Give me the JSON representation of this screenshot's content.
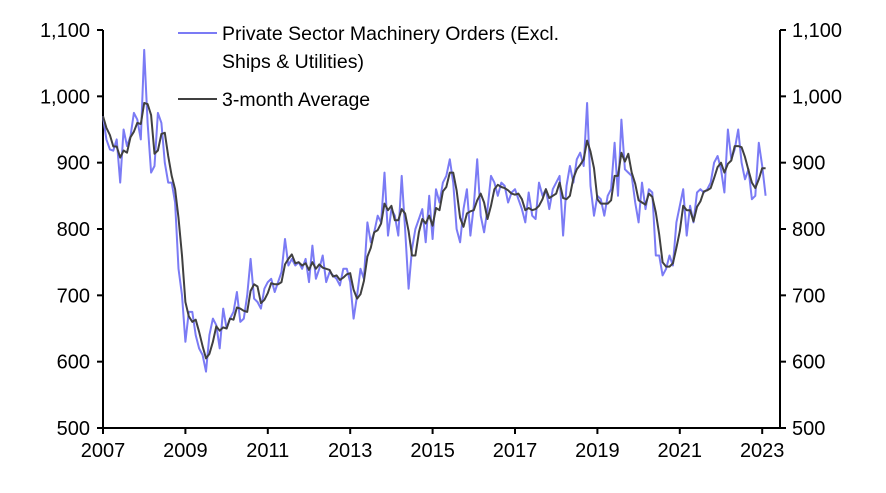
{
  "chart_data": {
    "type": "line",
    "title": "",
    "xlabel": "",
    "ylabel": "",
    "ylim": [
      500,
      1100
    ],
    "xlim": [
      2007,
      2023.4
    ],
    "x_ticks": [
      "2007",
      "2009",
      "2011",
      "2013",
      "2015",
      "2017",
      "2019",
      "2021",
      "2023"
    ],
    "y_ticks": [
      "500",
      "600",
      "700",
      "800",
      "900",
      "1,000",
      "1,100"
    ],
    "y_tick_values": [
      500,
      600,
      700,
      800,
      900,
      1000,
      1100
    ],
    "start": "2007-01",
    "frequency": "monthly",
    "grid": false,
    "legend_position": "top-center",
    "series": [
      {
        "name": "Private Sector Machinery Orders (Excl. Ships & Utilities)",
        "legend_lines": [
          "Private Sector Machinery Orders (Excl.",
          "Ships & Utilities)"
        ],
        "color": "#7b7bf5",
        "values": [
          970,
          935,
          920,
          918,
          935,
          870,
          950,
          925,
          940,
          975,
          965,
          935,
          1070,
          960,
          885,
          895,
          975,
          960,
          900,
          870,
          870,
          840,
          740,
          700,
          630,
          675,
          675,
          640,
          620,
          610,
          585,
          640,
          665,
          655,
          620,
          680,
          650,
          665,
          675,
          705,
          660,
          665,
          700,
          755,
          695,
          690,
          680,
          710,
          720,
          725,
          705,
          720,
          735,
          785,
          745,
          755,
          745,
          750,
          740,
          755,
          720,
          775,
          725,
          740,
          760,
          720,
          735,
          730,
          725,
          715,
          740,
          740,
          720,
          665,
          700,
          740,
          725,
          810,
          780,
          795,
          820,
          810,
          885,
          790,
          830,
          820,
          790,
          880,
          800,
          710,
          770,
          800,
          815,
          830,
          780,
          850,
          785,
          860,
          840,
          870,
          880,
          905,
          870,
          800,
          780,
          830,
          860,
          790,
          835,
          905,
          820,
          795,
          830,
          880,
          870,
          850,
          870,
          865,
          840,
          855,
          860,
          845,
          830,
          810,
          855,
          820,
          815,
          870,
          850,
          860,
          830,
          860,
          870,
          880,
          790,
          865,
          895,
          870,
          905,
          915,
          895,
          990,
          865,
          820,
          850,
          845,
          820,
          850,
          860,
          930,
          850,
          965,
          890,
          885,
          880,
          840,
          810,
          870,
          830,
          860,
          855,
          760,
          760,
          730,
          740,
          760,
          745,
          810,
          835,
          860,
          790,
          835,
          810,
          855,
          860,
          855,
          860,
          870,
          900,
          910,
          890,
          855,
          950,
          905,
          920,
          950,
          900,
          875,
          890,
          845,
          850,
          930,
          895,
          850
        ]
      },
      {
        "name": "3-month Average",
        "legend_lines": [
          "3-month Average"
        ],
        "color": "#404040",
        "derived_from": "3-month trailing average of series 1"
      }
    ]
  }
}
